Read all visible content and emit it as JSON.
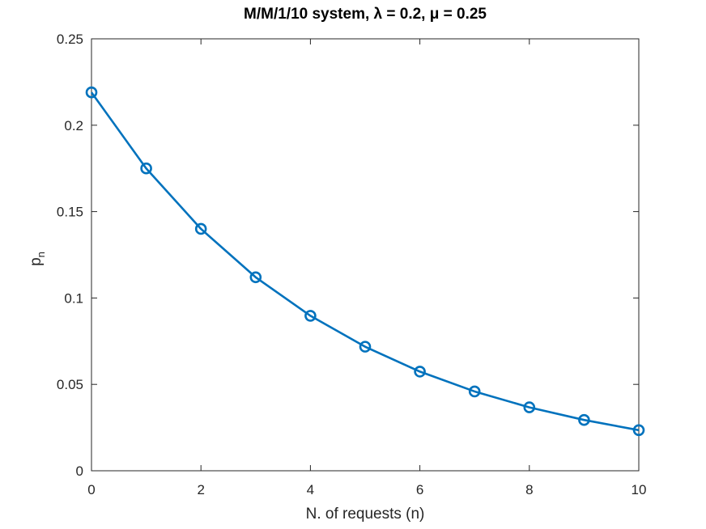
{
  "chart_data": {
    "type": "line",
    "title": "M/M/1/10 system, λ = 0.2, μ = 0.25",
    "xlabel": "N. of requests (n)",
    "ylabel_main": "p",
    "ylabel_sub": "n",
    "xlim": [
      0,
      10
    ],
    "ylim": [
      0,
      0.25
    ],
    "x_ticks": [
      0,
      2,
      4,
      6,
      8,
      10
    ],
    "y_ticks": [
      0,
      0.05,
      0.1,
      0.15,
      0.2,
      0.25
    ],
    "x_tick_labels": [
      "0",
      "2",
      "4",
      "6",
      "8",
      "10"
    ],
    "y_tick_labels": [
      "0",
      "0.05",
      "0.1",
      "0.15",
      "0.2",
      "0.25"
    ],
    "grid": false,
    "marker": "circle",
    "color": "#0072BD",
    "series": [
      {
        "x": [
          0,
          1,
          2,
          3,
          4,
          5,
          6,
          7,
          8,
          9,
          10
        ],
        "values": [
          0.219,
          0.175,
          0.14,
          0.112,
          0.0897,
          0.0718,
          0.0574,
          0.0459,
          0.0367,
          0.0294,
          0.0235
        ]
      }
    ]
  }
}
